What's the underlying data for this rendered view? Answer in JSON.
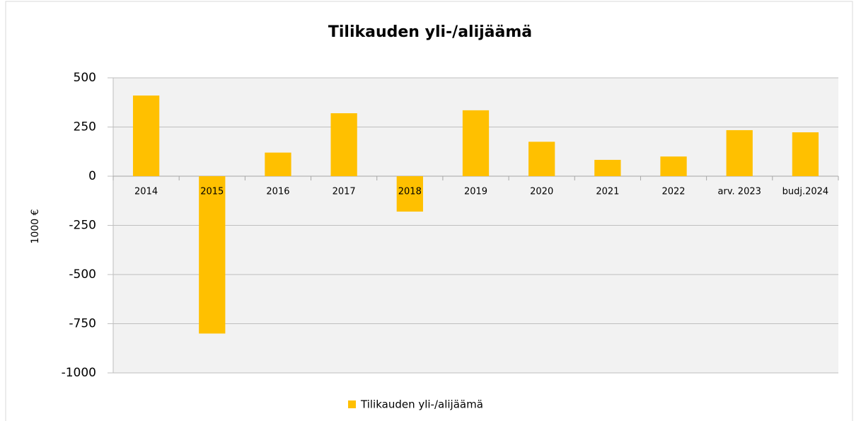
{
  "chart_data": {
    "type": "bar",
    "title": "Tilikauden yli-/alijäämä",
    "y_label": "1000 €",
    "categories": [
      "2014",
      "2015",
      "2016",
      "2017",
      "2018",
      "2019",
      "2020",
      "2021",
      "2022",
      "arv. 2023",
      "budj.2024"
    ],
    "series": [
      {
        "name": "Tilikauden yli-/alijäämä",
        "color": "#ffc000",
        "values": [
          410,
          -800,
          120,
          320,
          -180,
          335,
          175,
          83,
          100,
          234,
          223
        ]
      }
    ],
    "ylim": [
      -1000,
      500
    ],
    "yticks": [
      500,
      250,
      0,
      -250,
      -500,
      -750,
      -1000
    ],
    "grid": true,
    "legend": "bottom"
  }
}
